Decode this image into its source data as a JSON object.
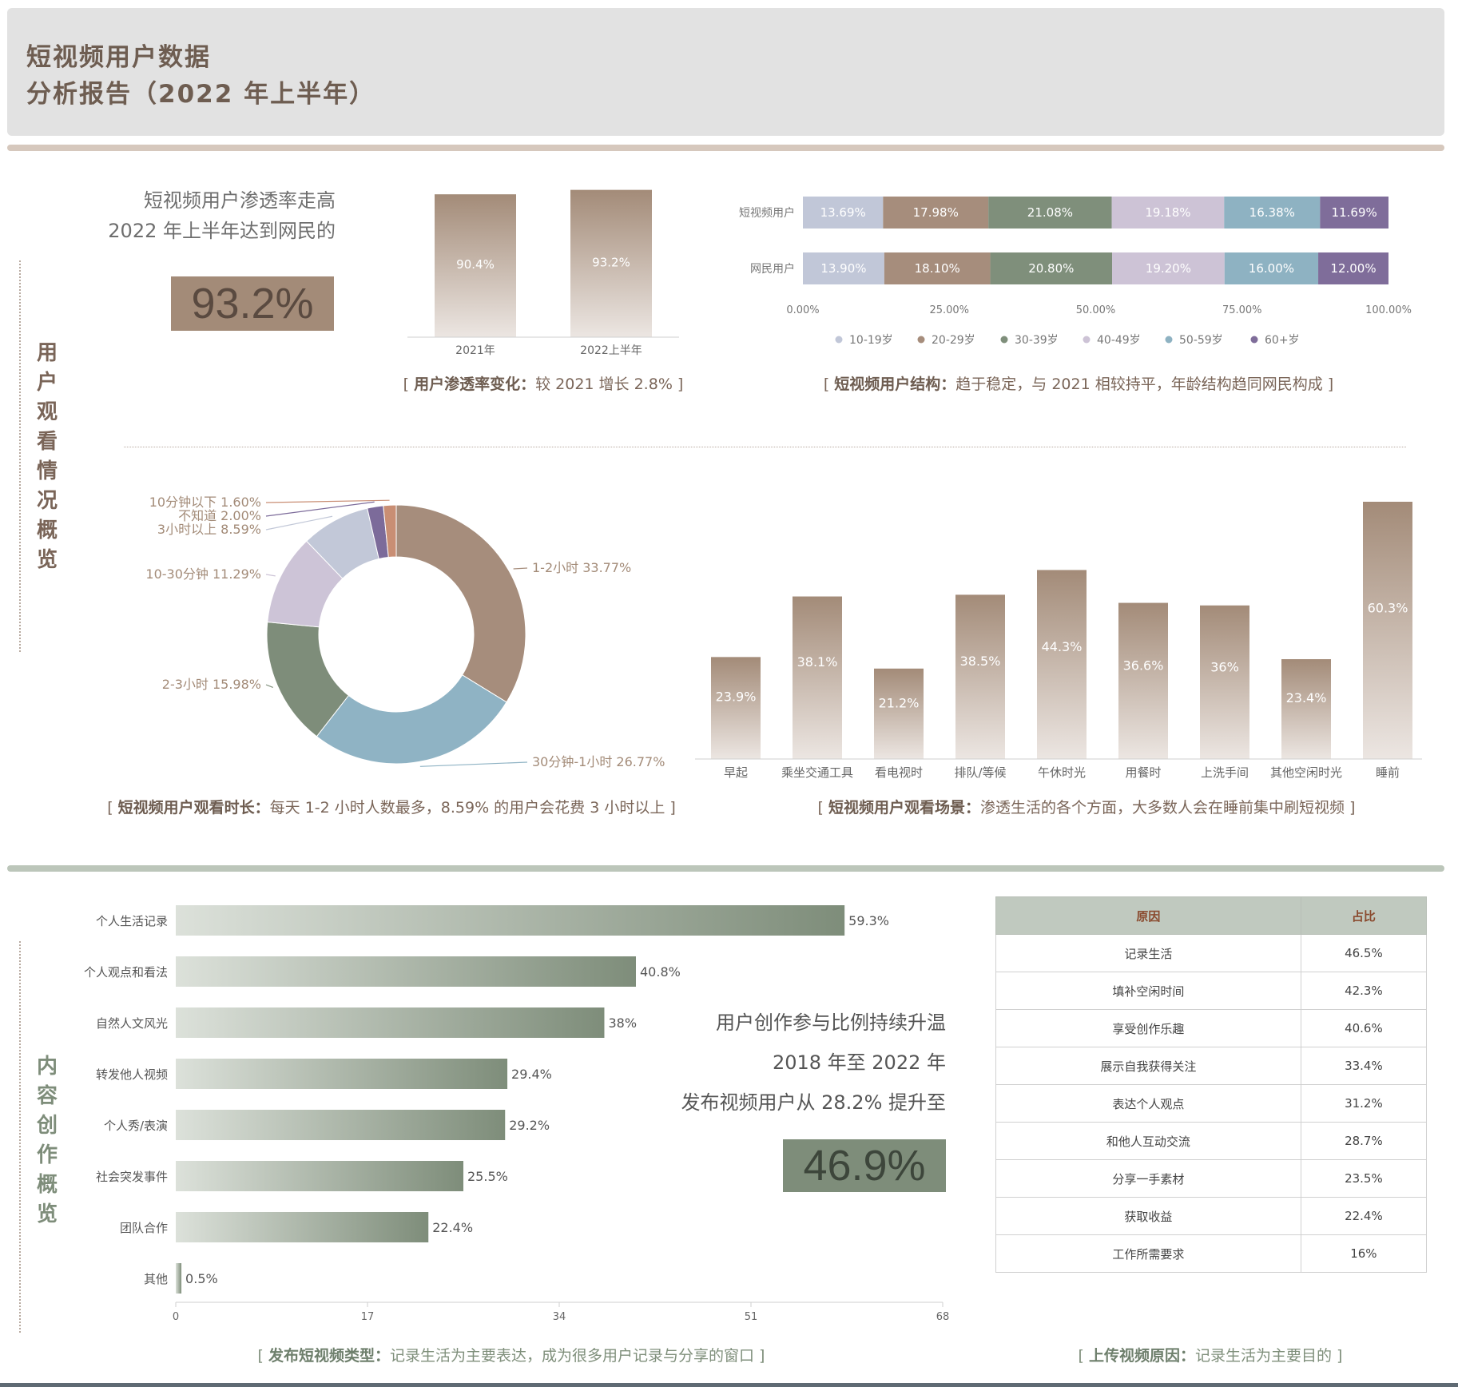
{
  "header": {
    "title_line1": "短视频用户数据",
    "title_line2": "分析报告（2022 年上半年）"
  },
  "sections": {
    "viewing_label": [
      "用",
      "户",
      "观",
      "看",
      "情",
      "况",
      "概",
      "览"
    ],
    "creation_label": [
      "内",
      "容",
      "创",
      "作",
      "概",
      "览"
    ]
  },
  "penetration": {
    "line1": "短视频用户渗透率走高",
    "line2": "2022 年上半年达到网民的",
    "value": "93.2%"
  },
  "captions": {
    "penetration_change": {
      "bold": "用户渗透率变化：",
      "text": "较 2021 增长 2.8%"
    },
    "user_structure": {
      "bold": "短视频用户结构：",
      "text": "趋于稳定，与 2021 相较持平，年龄结构趋同网民构成"
    },
    "watch_time": {
      "bold": "短视频用户观看时长：",
      "text": "每天 1-2 小时人数最多，8.59% 的用户会花费 3 小时以上"
    },
    "watch_scene": {
      "bold": "短视频用户观看场景：",
      "text": "渗透生活的各个方面，大多数人会在睡前集中刷短视频"
    },
    "video_type": {
      "bold": "发布短视频类型：",
      "text": "记录生活为主要表达，成为很多用户记录与分享的窗口"
    },
    "upload_reason": {
      "bold": "上传视频原因：",
      "text": "记录生活为主要目的"
    }
  },
  "creation": {
    "line1": "用户创作参与比例持续升温",
    "line2": "2018 年至 2022 年",
    "line3": "发布视频用户从 28.2% 提升至",
    "value": "46.9%"
  },
  "colors": {
    "brown": "#a38b78",
    "green": "#7e8d7a",
    "sage_bar": "#c2cbc0",
    "tan_bar": "#d4c6bb"
  },
  "chart_data": [
    {
      "id": "penetration_bars",
      "type": "bar",
      "categories": [
        "2021年",
        "2022上半年"
      ],
      "values": [
        90.4,
        93.2
      ],
      "labels": [
        "90.4%",
        "93.2%"
      ],
      "ylim": [
        0,
        100
      ]
    },
    {
      "id": "age_structure",
      "type": "bar",
      "stacked": true,
      "orientation": "horizontal",
      "categories": [
        "短视频用户",
        "网民用户"
      ],
      "series": [
        {
          "name": "10-19岁",
          "values": [
            13.69,
            13.9
          ],
          "labels": [
            "13.69%",
            "13.90%"
          ],
          "color": "#c1c7d8"
        },
        {
          "name": "20-29岁",
          "values": [
            17.98,
            18.1
          ],
          "labels": [
            "17.98%",
            "18.10%"
          ],
          "color": "#a68d7c"
        },
        {
          "name": "30-39岁",
          "values": [
            21.08,
            20.8
          ],
          "labels": [
            "21.08%",
            "20.80%"
          ],
          "color": "#7f8f7b"
        },
        {
          "name": "40-49岁",
          "values": [
            19.18,
            19.2
          ],
          "labels": [
            "19.18%",
            "19.20%"
          ],
          "color": "#cdc3d6"
        },
        {
          "name": "50-59岁",
          "values": [
            16.38,
            16.0
          ],
          "labels": [
            "16.38%",
            "16.00%"
          ],
          "color": "#8eb2c2"
        },
        {
          "name": "60+岁",
          "values": [
            11.69,
            12.0
          ],
          "labels": [
            "11.69%",
            "12.00%"
          ],
          "color": "#7f6d9a"
        }
      ],
      "xticks": [
        "0.00%",
        "25.00%",
        "50.00%",
        "75.00%",
        "100.00%"
      ],
      "xlim": [
        0,
        100
      ],
      "legend": "bottom"
    },
    {
      "id": "watch_time",
      "type": "pie",
      "donut": true,
      "slices": [
        {
          "label": "1-2小时",
          "value": 33.77,
          "text": "1-2小时 33.77%",
          "color": "#a68d7c"
        },
        {
          "label": "30分钟-1小时",
          "value": 26.77,
          "text": "30分钟-1小时 26.77%",
          "color": "#8fb3c4"
        },
        {
          "label": "2-3小时",
          "value": 15.98,
          "text": "2-3小时 15.98%",
          "color": "#7e8d7a"
        },
        {
          "label": "10-30分钟",
          "value": 11.29,
          "text": "10-30分钟 11.29%",
          "color": "#cdc4d7"
        },
        {
          "label": "3小时以上",
          "value": 8.59,
          "text": "3小时以上 8.59%",
          "color": "#c2c8d8"
        },
        {
          "label": "不知道",
          "value": 2.0,
          "text": "不知道 2.00%",
          "color": "#7c6b9a"
        },
        {
          "label": "10分钟以下",
          "value": 1.6,
          "text": "10分钟以下 1.60%",
          "color": "#c98e74"
        }
      ]
    },
    {
      "id": "watch_scene",
      "type": "bar",
      "categories": [
        "早起",
        "乘坐交通工具",
        "看电视时",
        "排队/等候",
        "午休时光",
        "用餐时",
        "上洗手间",
        "其他空闲时光",
        "睡前"
      ],
      "values": [
        23.9,
        38.1,
        21.2,
        38.5,
        44.3,
        36.6,
        36,
        23.4,
        60.3
      ],
      "labels": [
        "23.9%",
        "38.1%",
        "21.2%",
        "38.5%",
        "44.3%",
        "36.6%",
        "36%",
        "23.4%",
        "60.3%"
      ],
      "ylim": [
        0,
        65
      ]
    },
    {
      "id": "video_type",
      "type": "bar",
      "orientation": "horizontal",
      "categories": [
        "个人生活记录",
        "个人观点和看法",
        "自然人文风光",
        "转发他人视频",
        "个人秀/表演",
        "社会突发事件",
        "团队合作",
        "其他"
      ],
      "values": [
        59.3,
        40.8,
        38,
        29.4,
        29.2,
        25.5,
        22.4,
        0.5
      ],
      "labels": [
        "59.3%",
        "40.8%",
        "38%",
        "29.4%",
        "29.2%",
        "25.5%",
        "22.4%",
        "0.5%"
      ],
      "xticks": [
        "0",
        "17",
        "34",
        "51",
        "68"
      ],
      "xlim": [
        0,
        68
      ]
    },
    {
      "id": "upload_reason",
      "type": "table",
      "columns": [
        "原因",
        "占比"
      ],
      "rows": [
        [
          "记录生活",
          "46.5%"
        ],
        [
          "填补空闲时间",
          "42.3%"
        ],
        [
          "享受创作乐趣",
          "40.6%"
        ],
        [
          "展示自我获得关注",
          "33.4%"
        ],
        [
          "表达个人观点",
          "31.2%"
        ],
        [
          "和他人互动交流",
          "28.7%"
        ],
        [
          "分享一手素材",
          "23.5%"
        ],
        [
          "获取收益",
          "22.4%"
        ],
        [
          "工作所需要求",
          "16%"
        ]
      ]
    }
  ]
}
